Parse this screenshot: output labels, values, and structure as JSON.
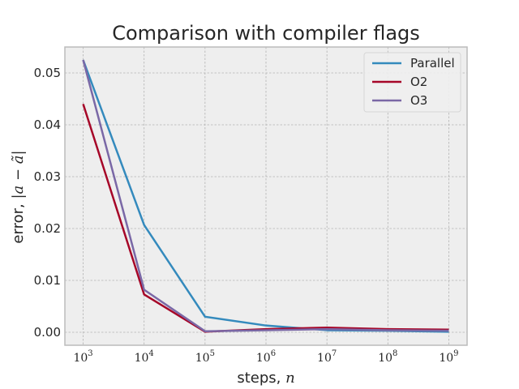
{
  "chart_data": {
    "type": "line",
    "title": "Comparison with compiler flags",
    "xlabel_prefix": "steps, ",
    "xlabel_math": "n",
    "ylabel_prefix": "error, ",
    "ylabel_math": "|a − ã|",
    "x_scale": "log",
    "x": [
      1000,
      10000,
      100000,
      1000000,
      10000000,
      100000000,
      1000000000
    ],
    "x_ticks": [
      {
        "base": "10",
        "exp": "3"
      },
      {
        "base": "10",
        "exp": "4"
      },
      {
        "base": "10",
        "exp": "5"
      },
      {
        "base": "10",
        "exp": "6"
      },
      {
        "base": "10",
        "exp": "7"
      },
      {
        "base": "10",
        "exp": "8"
      },
      {
        "base": "10",
        "exp": "9"
      }
    ],
    "y_ticks": [
      "0.00",
      "0.01",
      "0.02",
      "0.03",
      "0.04",
      "0.05"
    ],
    "ylim": [
      -0.0025,
      0.055
    ],
    "grid": true,
    "legend_position": "top-right",
    "series": [
      {
        "name": "Parallel",
        "color": "#348ABD",
        "values": [
          0.0525,
          0.0207,
          0.003,
          0.0013,
          0.0004,
          0.0003,
          0.0001
        ]
      },
      {
        "name": "O2",
        "color": "#A60628",
        "values": [
          0.044,
          0.0073,
          0.0001,
          0.0006,
          0.0009,
          0.0006,
          0.0005
        ]
      },
      {
        "name": "O3",
        "color": "#7A68A6",
        "values": [
          0.0525,
          0.0082,
          0.0002,
          0.0004,
          0.0006,
          0.0004,
          0.0003
        ]
      }
    ]
  }
}
